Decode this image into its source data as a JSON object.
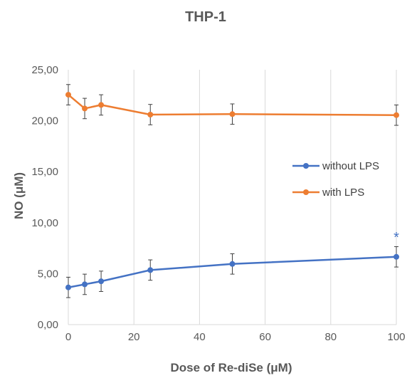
{
  "chart_data": {
    "type": "line",
    "title": "THP-1",
    "xlabel": "Dose of Re-diSe (μM)",
    "ylabel": "NO (μM)",
    "xlim": [
      0,
      100
    ],
    "ylim": [
      0,
      25
    ],
    "x_ticks": [
      "0",
      "20",
      "40",
      "60",
      "80",
      "100"
    ],
    "y_ticks": [
      "0,00",
      "5,00",
      "10,00",
      "15,00",
      "20,00",
      "25,00"
    ],
    "grid": "vertical",
    "legend_position": "right",
    "series": [
      {
        "name": "without LPS",
        "color": "#4472C4",
        "points": [
          {
            "x": 0,
            "y": 3.65,
            "err": 1.0
          },
          {
            "x": 5,
            "y": 3.95,
            "err": 1.0
          },
          {
            "x": 10,
            "y": 4.25,
            "err": 1.0
          },
          {
            "x": 25,
            "y": 5.35,
            "err": 1.0
          },
          {
            "x": 50,
            "y": 5.95,
            "err": 1.0
          },
          {
            "x": 100,
            "y": 6.65,
            "err": 1.0
          }
        ]
      },
      {
        "name": "with LPS",
        "color": "#ED7D31",
        "points": [
          {
            "x": 0,
            "y": 22.55,
            "err": 1.0
          },
          {
            "x": 5,
            "y": 21.2,
            "err": 1.0
          },
          {
            "x": 10,
            "y": 21.55,
            "err": 1.0
          },
          {
            "x": 25,
            "y": 20.6,
            "err": 1.0
          },
          {
            "x": 50,
            "y": 20.65,
            "err": 1.0
          },
          {
            "x": 100,
            "y": 20.55,
            "err": 1.0
          }
        ]
      }
    ],
    "annotations": [
      {
        "text": "*",
        "x": 100,
        "y": 8.6,
        "color": "#4472C4"
      }
    ]
  }
}
